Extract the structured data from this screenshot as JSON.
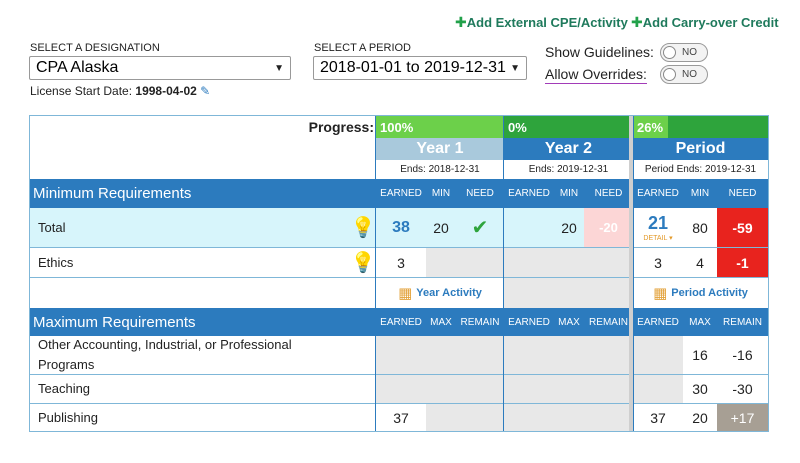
{
  "links": {
    "add_external": "Add External CPE/Activity",
    "add_carryover": "Add Carry-over Credit"
  },
  "designation": {
    "label": "SELECT A DESIGNATION",
    "value": "CPA Alaska"
  },
  "period": {
    "label": "SELECT A PERIOD",
    "value": "2018-01-01 to 2019-12-31"
  },
  "toggles": {
    "guidelines": {
      "label": "Show Guidelines:",
      "state": "NO"
    },
    "overrides": {
      "label": "Allow Overrides:",
      "state": "NO"
    }
  },
  "license": {
    "label": "License Start Date:",
    "value": "1998-04-02"
  },
  "progress": {
    "label": "Progress:",
    "year1": {
      "text": "100%",
      "fraction": 1.0
    },
    "year2": {
      "text": "0%",
      "fraction": 0.0
    },
    "period": {
      "text": "26%",
      "fraction": 0.26
    }
  },
  "columns": {
    "year1": {
      "title": "Year 1",
      "ends": "Ends: 2018-12-31"
    },
    "year2": {
      "title": "Year 2",
      "ends": "Ends: 2019-12-31"
    },
    "period": {
      "title": "Period",
      "ends": "Period Ends: 2019-12-31"
    }
  },
  "min_section": {
    "title": "Minimum Requirements",
    "h_earned": "EARNED",
    "h_min": "MIN",
    "h_need": "NEED",
    "total": {
      "label": "Total",
      "y1_earned": "38",
      "y1_min": "20",
      "y2_min": "20",
      "y2_need": "-20",
      "p_earned": "21",
      "p_detail": "DETAIL ▾",
      "p_min": "80",
      "p_need": "-59"
    },
    "ethics": {
      "label": "Ethics",
      "y1_earned": "3",
      "p_earned": "3",
      "p_min": "4",
      "p_need": "-1"
    }
  },
  "activity": {
    "year": "Year Activity",
    "period": "Period Activity"
  },
  "max_section": {
    "title": "Maximum Requirements",
    "h_earned": "EARNED",
    "h_max": "MAX",
    "h_remain": "REMAIN",
    "other": {
      "label": "Other Accounting, Industrial, or Professional Programs",
      "p_max": "16",
      "p_remain": "-16"
    },
    "teaching": {
      "label": "Teaching",
      "p_max": "30",
      "p_remain": "-30"
    },
    "publishing": {
      "label": "Publishing",
      "y1_earned": "37",
      "p_earned": "37",
      "p_max": "20",
      "p_remain": "+17"
    }
  }
}
